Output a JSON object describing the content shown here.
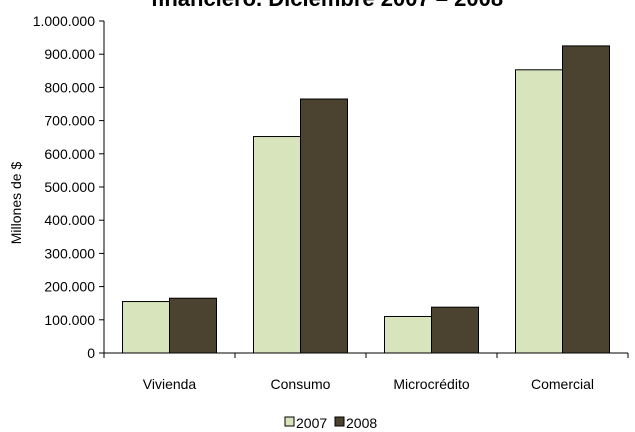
{
  "chart_data": {
    "type": "bar",
    "title": "financiero. Diciembre 2007 – 2008",
    "xlabel": "",
    "ylabel": "Millones de $",
    "categories": [
      "Vivienda",
      "Consumo",
      "Microcrédito",
      "Comercial"
    ],
    "series": [
      {
        "name": "2007",
        "values": [
          155000,
          652000,
          110000,
          853000
        ],
        "color": "#d8e4bc"
      },
      {
        "name": "2008",
        "values": [
          165000,
          765000,
          138000,
          925000
        ],
        "color": "#4b4330"
      }
    ],
    "ylim": [
      0,
      1000000
    ],
    "yticks": [
      "0",
      "100.000",
      "200.000",
      "300.000",
      "400.000",
      "500.000",
      "600.000",
      "700.000",
      "800.000",
      "900.000",
      "1.000.000"
    ],
    "grid": false,
    "legend_position": "bottom"
  }
}
